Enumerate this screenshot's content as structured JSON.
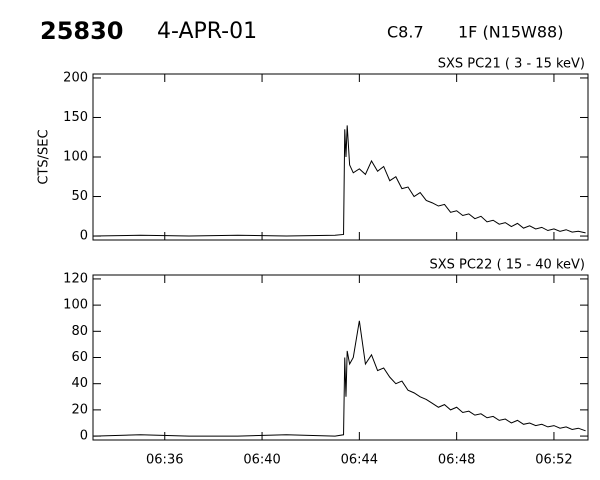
{
  "header": {
    "id": "25830",
    "date": "4-APR-01",
    "class": "C8.7",
    "location": "1F (N15W88)"
  },
  "chart_data": [
    {
      "type": "line",
      "title": "SXS PC21  (  3 - 15 keV)",
      "ylabel": "CTS/SEC",
      "x": [
        33.1,
        35,
        37,
        39,
        41,
        43,
        43.35,
        43.4,
        43.45,
        43.5,
        43.6,
        43.75,
        44,
        44.25,
        44.5,
        44.75,
        45,
        45.25,
        45.5,
        45.75,
        46,
        46.25,
        46.5,
        46.75,
        47,
        47.25,
        47.5,
        47.75,
        48,
        48.25,
        48.5,
        48.75,
        49,
        49.25,
        49.5,
        49.75,
        50,
        50.25,
        50.5,
        50.75,
        51,
        51.25,
        51.5,
        51.75,
        52,
        52.25,
        52.5,
        52.75,
        53,
        53.3
      ],
      "series": [
        {
          "color": "#000000",
          "values": [
            0,
            1,
            0,
            1,
            0,
            1,
            2,
            135,
            100,
            140,
            90,
            80,
            85,
            78,
            95,
            82,
            88,
            70,
            75,
            60,
            62,
            50,
            55,
            45,
            42,
            38,
            40,
            30,
            32,
            26,
            28,
            22,
            25,
            18,
            20,
            15,
            17,
            12,
            16,
            10,
            13,
            9,
            11,
            7,
            9,
            6,
            8,
            5,
            6,
            4
          ]
        }
      ],
      "xlim": [
        33.05,
        53.4
      ],
      "xticks": [
        {
          "value": 36,
          "label": "06:36"
        },
        {
          "value": 40,
          "label": "06:40"
        },
        {
          "value": 44,
          "label": "06:44"
        },
        {
          "value": 48,
          "label": "06:48"
        },
        {
          "value": 52,
          "label": "06:52"
        }
      ],
      "ylim": [
        -5,
        205
      ],
      "yticks": [
        0,
        50,
        100,
        150,
        200
      ]
    },
    {
      "type": "line",
      "title": "SXS PC22  ( 15 - 40 keV)",
      "x": [
        33.1,
        35,
        37,
        39,
        41,
        43,
        43.35,
        43.4,
        43.45,
        43.5,
        43.6,
        43.75,
        44,
        44.25,
        44.5,
        44.75,
        45,
        45.25,
        45.5,
        45.75,
        46,
        46.25,
        46.5,
        46.75,
        47,
        47.25,
        47.5,
        47.75,
        48,
        48.25,
        48.5,
        48.75,
        49,
        49.25,
        49.5,
        49.75,
        50,
        50.25,
        50.5,
        50.75,
        51,
        51.25,
        51.5,
        51.75,
        52,
        52.25,
        52.5,
        52.75,
        53,
        53.3
      ],
      "series": [
        {
          "color": "#000000",
          "values": [
            0,
            1,
            0,
            0,
            1,
            0,
            1,
            60,
            30,
            65,
            55,
            60,
            88,
            55,
            62,
            50,
            52,
            45,
            40,
            42,
            35,
            33,
            30,
            28,
            25,
            22,
            24,
            20,
            22,
            18,
            19,
            16,
            17,
            14,
            15,
            12,
            13,
            10,
            12,
            9,
            10,
            8,
            9,
            7,
            8,
            6,
            7,
            5,
            6,
            4
          ]
        }
      ],
      "xlim": [
        33.05,
        53.4
      ],
      "xticks": [
        {
          "value": 36,
          "label": "06:36"
        },
        {
          "value": 40,
          "label": "06:40"
        },
        {
          "value": 44,
          "label": "06:44"
        },
        {
          "value": 48,
          "label": "06:48"
        },
        {
          "value": 52,
          "label": "06:52"
        }
      ],
      "ylim": [
        -3,
        123
      ],
      "yticks": [
        0,
        20,
        40,
        60,
        80,
        100,
        120
      ]
    }
  ]
}
